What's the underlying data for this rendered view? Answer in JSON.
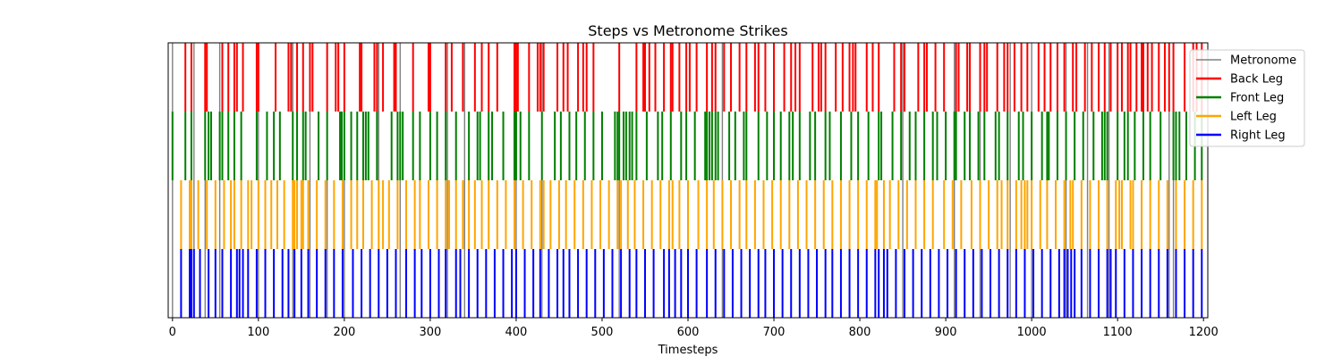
{
  "chart_data": {
    "type": "event",
    "title": "Steps vs Metronome Strikes",
    "xlabel": "Timesteps",
    "ylabel": "",
    "xlim": [
      -5,
      1205
    ],
    "xticks": [
      0,
      100,
      200,
      300,
      400,
      500,
      600,
      700,
      800,
      900,
      1000,
      1100,
      1200
    ],
    "xtick_labels": [
      "0",
      "100",
      "200",
      "300",
      "400",
      "500",
      "600",
      "700",
      "800",
      "900",
      "1000",
      "1100",
      "1200"
    ],
    "grid": false,
    "legend_position": "top-right, outside plot",
    "metronome": {
      "name": "Metronome",
      "color": "#808080",
      "x": [
        0,
        25,
        38,
        55,
        100,
        140,
        160,
        180,
        200,
        240,
        265,
        320,
        340,
        400,
        430,
        520,
        640,
        850,
        910,
        940,
        975,
        1000,
        1040,
        1065,
        1090,
        1160,
        1165
      ]
    },
    "series": [
      {
        "name": "Back Leg",
        "color": "#ff0000",
        "x": [
          15,
          22,
          38,
          40,
          58,
          65,
          72,
          75,
          82,
          98,
          100,
          120,
          135,
          138,
          145,
          152,
          160,
          163,
          180,
          190,
          193,
          200,
          218,
          220,
          235,
          238,
          245,
          258,
          260,
          280,
          298,
          300,
          318,
          325,
          338,
          352,
          360,
          368,
          378,
          398,
          400,
          402,
          415,
          425,
          428,
          432,
          448,
          455,
          460,
          472,
          478,
          482,
          490,
          520,
          540,
          548,
          550,
          555,
          562,
          572,
          580,
          582,
          590,
          598,
          602,
          610,
          622,
          628,
          632,
          642,
          650,
          660,
          668,
          678,
          682,
          690,
          700,
          712,
          720,
          725,
          730,
          745,
          752,
          755,
          760,
          772,
          780,
          788,
          792,
          795,
          808,
          815,
          822,
          840,
          848,
          852,
          868,
          875,
          878,
          888,
          898,
          912,
          915,
          925,
          928,
          940,
          945,
          948,
          960,
          968,
          972,
          980,
          988,
          995,
          1008,
          1015,
          1022,
          1030,
          1038,
          1048,
          1052,
          1062,
          1070,
          1078,
          1085,
          1092,
          1100,
          1105,
          1112,
          1115,
          1122,
          1128,
          1130,
          1135,
          1140,
          1148,
          1155,
          1160,
          1165,
          1178,
          1188,
          1192,
          1198
        ]
      },
      {
        "name": "Front Leg",
        "color": "#008000",
        "x": [
          0,
          15,
          22,
          38,
          42,
          45,
          55,
          58,
          65,
          72,
          80,
          98,
          110,
          118,
          125,
          140,
          145,
          152,
          155,
          170,
          180,
          195,
          197,
          200,
          208,
          215,
          222,
          225,
          228,
          238,
          255,
          262,
          265,
          268,
          280,
          288,
          300,
          308,
          318,
          330,
          345,
          355,
          358,
          368,
          372,
          385,
          398,
          400,
          405,
          415,
          430,
          445,
          452,
          462,
          470,
          480,
          490,
          500,
          515,
          518,
          520,
          525,
          528,
          532,
          535,
          540,
          552,
          565,
          570,
          580,
          592,
          598,
          608,
          620,
          622,
          625,
          628,
          632,
          635,
          648,
          655,
          665,
          668,
          682,
          692,
          700,
          708,
          718,
          722,
          730,
          742,
          748,
          760,
          765,
          778,
          790,
          798,
          810,
          822,
          825,
          838,
          848,
          858,
          865,
          875,
          885,
          890,
          900,
          910,
          912,
          922,
          928,
          938,
          945,
          958,
          962,
          972,
          985,
          990,
          1000,
          1012,
          1018,
          1020,
          1030,
          1040,
          1050,
          1060,
          1072,
          1082,
          1085,
          1088,
          1100,
          1108,
          1112,
          1120,
          1130,
          1138,
          1150,
          1165,
          1168,
          1172,
          1180,
          1190,
          1198
        ]
      },
      {
        "name": "Left Leg",
        "color": "#ffa500",
        "x": [
          10,
          20,
          22,
          30,
          40,
          50,
          60,
          68,
          72,
          80,
          88,
          92,
          100,
          108,
          115,
          122,
          130,
          140,
          142,
          145,
          150,
          152,
          158,
          168,
          178,
          188,
          198,
          208,
          215,
          222,
          232,
          240,
          245,
          252,
          262,
          272,
          282,
          288,
          298,
          308,
          318,
          322,
          330,
          338,
          345,
          352,
          360,
          368,
          378,
          388,
          398,
          408,
          418,
          428,
          432,
          440,
          450,
          458,
          468,
          478,
          488,
          498,
          508,
          518,
          522,
          530,
          538,
          548,
          558,
          568,
          578,
          582,
          590,
          600,
          612,
          622,
          630,
          640,
          650,
          660,
          668,
          678,
          688,
          698,
          708,
          718,
          728,
          738,
          748,
          758,
          768,
          778,
          788,
          798,
          808,
          818,
          820,
          828,
          835,
          845,
          855,
          865,
          875,
          885,
          898,
          908,
          918,
          930,
          940,
          950,
          960,
          965,
          972,
          982,
          988,
          992,
          995,
          1000,
          1010,
          1018,
          1028,
          1038,
          1045,
          1048,
          1058,
          1068,
          1078,
          1088,
          1098,
          1102,
          1105,
          1115,
          1118,
          1128,
          1138,
          1148,
          1158,
          1168,
          1178,
          1188,
          1198
        ]
      },
      {
        "name": "Right Leg",
        "color": "#0000ff",
        "x": [
          10,
          20,
          22,
          25,
          32,
          42,
          50,
          58,
          68,
          75,
          78,
          82,
          88,
          98,
          108,
          118,
          128,
          135,
          142,
          150,
          158,
          168,
          178,
          188,
          198,
          210,
          220,
          230,
          240,
          250,
          260,
          272,
          282,
          290,
          300,
          310,
          318,
          330,
          335,
          345,
          355,
          365,
          375,
          385,
          395,
          400,
          410,
          420,
          428,
          438,
          448,
          455,
          462,
          472,
          482,
          492,
          502,
          512,
          522,
          532,
          540,
          550,
          560,
          572,
          578,
          585,
          592,
          600,
          610,
          622,
          632,
          642,
          652,
          662,
          672,
          682,
          690,
          700,
          710,
          720,
          730,
          740,
          750,
          760,
          768,
          778,
          788,
          798,
          808,
          818,
          822,
          828,
          832,
          842,
          852,
          862,
          872,
          882,
          892,
          902,
          912,
          922,
          932,
          942,
          952,
          962,
          972,
          982,
          992,
          1002,
          1012,
          1022,
          1032,
          1038,
          1042,
          1046,
          1050,
          1058,
          1068,
          1078,
          1088,
          1092,
          1098,
          1108,
          1118,
          1128,
          1138,
          1148,
          1158,
          1168,
          1178,
          1188,
          1198
        ]
      }
    ]
  }
}
